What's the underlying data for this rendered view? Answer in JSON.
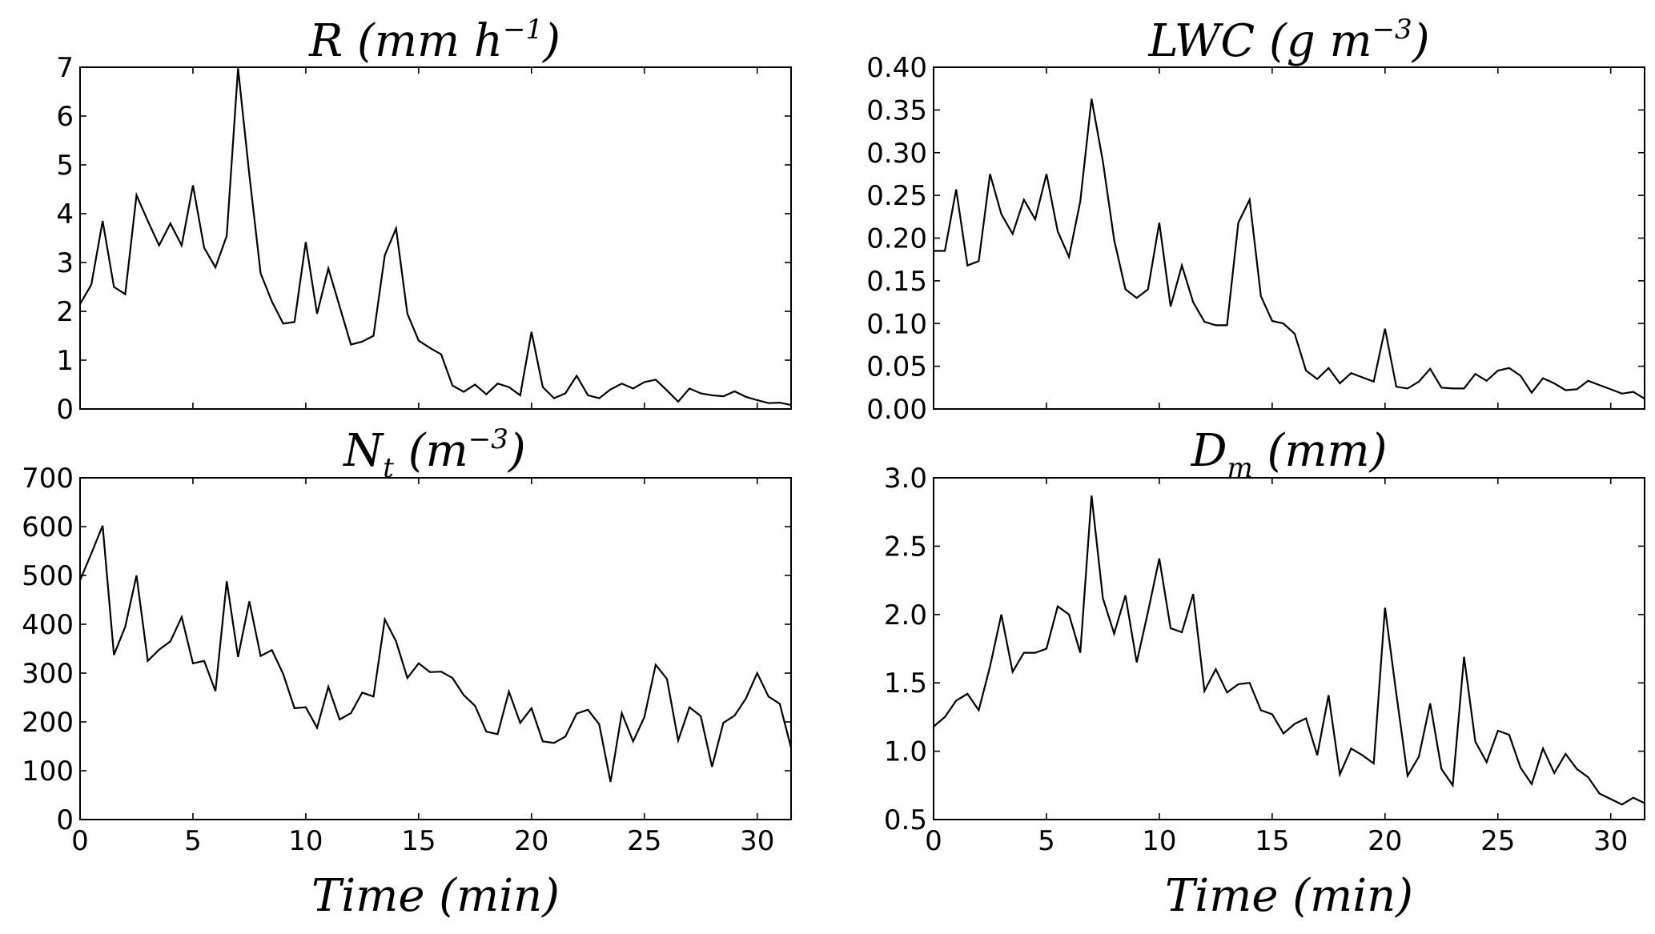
{
  "chart_data": [
    {
      "type": "line",
      "title_main": "R (mm h",
      "title_sup": "−1",
      "title_tail": ")",
      "ylim": [
        0,
        7
      ],
      "yticks": [
        0,
        1,
        2,
        3,
        4,
        5,
        6,
        7
      ],
      "ytick_labels": [
        "0",
        "1",
        "2",
        "3",
        "4",
        "5",
        "6",
        "7"
      ],
      "xlim": [
        0,
        31.5
      ],
      "xticks": [
        0,
        5,
        10,
        15,
        20,
        25,
        30
      ],
      "xtick_labels": [],
      "xlabel": "",
      "series": [
        {
          "name": "R",
          "x": [
            0,
            0.5,
            1,
            1.5,
            2,
            2.5,
            3,
            3.5,
            4,
            4.5,
            5,
            5.5,
            6,
            6.5,
            7,
            7.5,
            8,
            8.5,
            9,
            9.5,
            10,
            10.5,
            11,
            11.5,
            12,
            12.5,
            13,
            13.5,
            14,
            14.5,
            15,
            15.5,
            16,
            16.5,
            17,
            17.5,
            18,
            18.5,
            19,
            19.5,
            20,
            20.5,
            21,
            21.5,
            22,
            22.5,
            23,
            23.5,
            24,
            24.5,
            25,
            25.5,
            26,
            26.5,
            27,
            27.5,
            28,
            28.5,
            29,
            29.5,
            30,
            30.5,
            31,
            31.5
          ],
          "values": [
            2.15,
            2.55,
            3.85,
            2.5,
            2.35,
            4.38,
            3.85,
            3.35,
            3.8,
            3.35,
            4.58,
            3.3,
            2.9,
            3.55,
            6.98,
            4.8,
            2.78,
            2.2,
            1.75,
            1.78,
            3.42,
            1.95,
            2.88,
            2.1,
            1.32,
            1.38,
            1.5,
            3.15,
            3.7,
            1.95,
            1.4,
            1.25,
            1.12,
            0.48,
            0.35,
            0.5,
            0.3,
            0.52,
            0.45,
            0.28,
            1.58,
            0.45,
            0.22,
            0.32,
            0.68,
            0.28,
            0.22,
            0.4,
            0.52,
            0.42,
            0.55,
            0.6,
            0.38,
            0.15,
            0.42,
            0.32,
            0.28,
            0.26,
            0.36,
            0.25,
            0.18,
            0.12,
            0.13,
            0.08
          ]
        }
      ]
    },
    {
      "type": "line",
      "title_main": "LWC (g m",
      "title_sup": "−3",
      "title_tail": ")",
      "ylim": [
        0,
        0.4
      ],
      "yticks": [
        0,
        0.05,
        0.1,
        0.15,
        0.2,
        0.25,
        0.3,
        0.35,
        0.4
      ],
      "ytick_labels": [
        "0.00",
        "0.05",
        "0.10",
        "0.15",
        "0.20",
        "0.25",
        "0.30",
        "0.35",
        "0.40"
      ],
      "xlim": [
        0,
        31.5
      ],
      "xticks": [
        0,
        5,
        10,
        15,
        20,
        25,
        30
      ],
      "xtick_labels": [],
      "xlabel": "",
      "series": [
        {
          "name": "LWC",
          "x": [
            0,
            0.5,
            1,
            1.5,
            2,
            2.5,
            3,
            3.5,
            4,
            4.5,
            5,
            5.5,
            6,
            6.5,
            7,
            7.5,
            8,
            8.5,
            9,
            9.5,
            10,
            10.5,
            11,
            11.5,
            12,
            12.5,
            13,
            13.5,
            14,
            14.5,
            15,
            15.5,
            16,
            16.5,
            17,
            17.5,
            18,
            18.5,
            19,
            19.5,
            20,
            20.5,
            21,
            21.5,
            22,
            22.5,
            23,
            23.5,
            24,
            24.5,
            25,
            25.5,
            26,
            26.5,
            27,
            27.5,
            28,
            28.5,
            29,
            29.5,
            30,
            30.5,
            31,
            31.5
          ],
          "values": [
            0.185,
            0.185,
            0.257,
            0.168,
            0.173,
            0.275,
            0.228,
            0.205,
            0.245,
            0.222,
            0.275,
            0.208,
            0.178,
            0.243,
            0.363,
            0.29,
            0.198,
            0.14,
            0.13,
            0.14,
            0.218,
            0.12,
            0.168,
            0.125,
            0.102,
            0.098,
            0.098,
            0.218,
            0.245,
            0.132,
            0.103,
            0.1,
            0.088,
            0.045,
            0.035,
            0.048,
            0.03,
            0.042,
            0.037,
            0.032,
            0.094,
            0.026,
            0.024,
            0.032,
            0.047,
            0.025,
            0.024,
            0.024,
            0.041,
            0.033,
            0.045,
            0.048,
            0.039,
            0.019,
            0.036,
            0.03,
            0.022,
            0.023,
            0.033,
            0.028,
            0.023,
            0.018,
            0.02,
            0.012
          ]
        }
      ]
    },
    {
      "type": "line",
      "title_main": "N",
      "title_sub": "t",
      "title_rest": " (m",
      "title_sup": "−3",
      "title_tail": ")",
      "ylim": [
        0,
        700
      ],
      "yticks": [
        0,
        100,
        200,
        300,
        400,
        500,
        600,
        700
      ],
      "ytick_labels": [
        "0",
        "100",
        "200",
        "300",
        "400",
        "500",
        "600",
        "700"
      ],
      "xlim": [
        0,
        31.5
      ],
      "xticks": [
        0,
        5,
        10,
        15,
        20,
        25,
        30
      ],
      "xtick_labels": [
        "0",
        "5",
        "10",
        "15",
        "20",
        "25",
        "30"
      ],
      "xlabel": "Time (min)",
      "series": [
        {
          "name": "Nt",
          "x": [
            0,
            0.5,
            1,
            1.5,
            2,
            2.5,
            3,
            3.5,
            4,
            4.5,
            5,
            5.5,
            6,
            6.5,
            7,
            7.5,
            8,
            8.5,
            9,
            9.5,
            10,
            10.5,
            11,
            11.5,
            12,
            12.5,
            13,
            13.5,
            14,
            14.5,
            15,
            15.5,
            16,
            16.5,
            17,
            17.5,
            18,
            18.5,
            19,
            19.5,
            20,
            20.5,
            21,
            21.5,
            22,
            22.5,
            23,
            23.5,
            24,
            24.5,
            25,
            25.5,
            26,
            26.5,
            27,
            27.5,
            28,
            28.5,
            29,
            29.5,
            30,
            30.5,
            31,
            31.5
          ],
          "values": [
            490,
            545,
            602,
            337,
            395,
            500,
            325,
            348,
            365,
            415,
            320,
            325,
            263,
            488,
            333,
            447,
            335,
            347,
            298,
            228,
            230,
            188,
            272,
            205,
            218,
            260,
            252,
            410,
            365,
            290,
            320,
            302,
            303,
            290,
            255,
            233,
            180,
            175,
            262,
            198,
            228,
            160,
            157,
            170,
            217,
            225,
            195,
            77,
            218,
            160,
            210,
            317,
            288,
            162,
            230,
            212,
            108,
            198,
            213,
            248,
            300,
            252,
            237,
            147
          ]
        }
      ]
    },
    {
      "type": "line",
      "title_main": "D",
      "title_sub": "m",
      "title_rest": "  (mm)",
      "title_sup": "",
      "title_tail": "",
      "ylim": [
        0.5,
        3.0
      ],
      "yticks": [
        0.5,
        1.0,
        1.5,
        2.0,
        2.5,
        3.0
      ],
      "ytick_labels": [
        "0.5",
        "1.0",
        "1.5",
        "2.0",
        "2.5",
        "3.0"
      ],
      "xlim": [
        0,
        31.5
      ],
      "xticks": [
        0,
        5,
        10,
        15,
        20,
        25,
        30
      ],
      "xtick_labels": [
        "0",
        "5",
        "10",
        "15",
        "20",
        "25",
        "30"
      ],
      "xlabel": "Time (min)",
      "series": [
        {
          "name": "Dm",
          "x": [
            0,
            0.5,
            1,
            1.5,
            2,
            2.5,
            3,
            3.5,
            4,
            4.5,
            5,
            5.5,
            6,
            6.5,
            7,
            7.5,
            8,
            8.5,
            9,
            9.5,
            10,
            10.5,
            11,
            11.5,
            12,
            12.5,
            13,
            13.5,
            14,
            14.5,
            15,
            15.5,
            16,
            16.5,
            17,
            17.5,
            18,
            18.5,
            19,
            19.5,
            20,
            20.5,
            21,
            21.5,
            22,
            22.5,
            23,
            23.5,
            24,
            24.5,
            25,
            25.5,
            26,
            26.5,
            27,
            27.5,
            28,
            28.5,
            29,
            29.5,
            30,
            30.5,
            31,
            31.5
          ],
          "values": [
            1.18,
            1.25,
            1.37,
            1.42,
            1.3,
            1.62,
            2.0,
            1.58,
            1.72,
            1.72,
            1.75,
            2.06,
            2.0,
            1.72,
            2.87,
            2.12,
            1.86,
            2.14,
            1.65,
            2.02,
            2.41,
            1.9,
            1.87,
            2.15,
            1.44,
            1.6,
            1.43,
            1.49,
            1.5,
            1.3,
            1.27,
            1.13,
            1.2,
            1.24,
            0.97,
            1.41,
            0.83,
            1.02,
            0.97,
            0.91,
            2.05,
            1.42,
            0.82,
            0.96,
            1.35,
            0.87,
            0.75,
            1.69,
            1.07,
            0.92,
            1.15,
            1.12,
            0.88,
            0.76,
            1.02,
            0.84,
            0.98,
            0.87,
            0.81,
            0.69,
            0.65,
            0.61,
            0.66,
            0.62
          ]
        }
      ]
    }
  ]
}
